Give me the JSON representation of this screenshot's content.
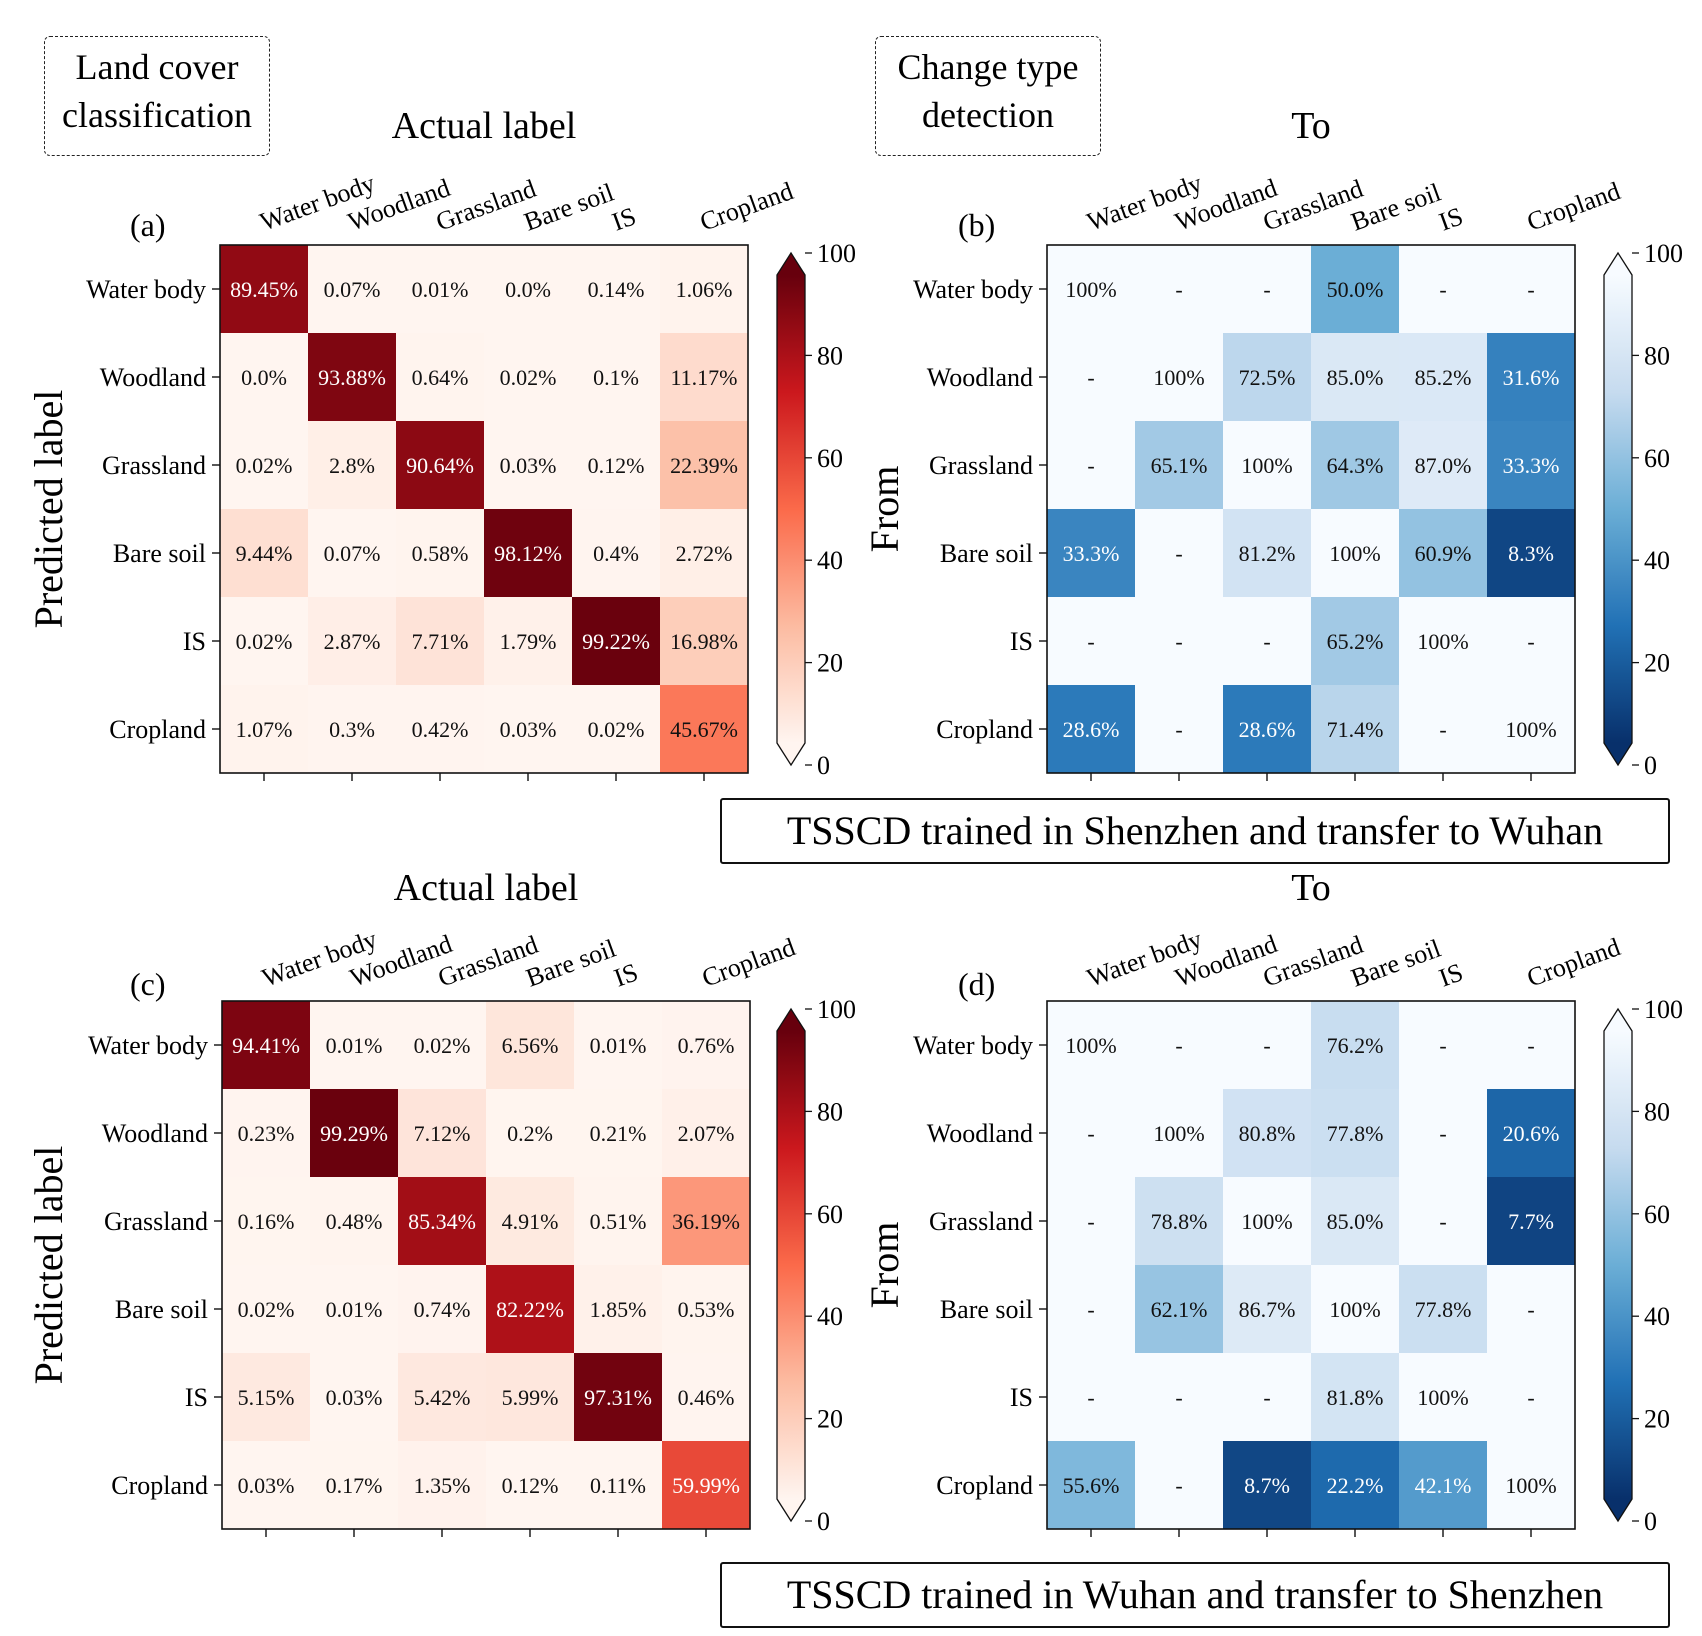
{
  "boxes": {
    "land_cover": "Land cover\nclassification",
    "change_type": "Change type\ndetection"
  },
  "banners": {
    "top": "TSSCD trained in Shenzhen and transfer to Wuhan",
    "bottom": "TSSCD trained in Wuhan and transfer to Shenzhen"
  },
  "chart_data": [
    {
      "type": "heatmap",
      "panel_label": "(a)",
      "title": "Actual label",
      "ylabel": "Predicted label",
      "colormap": "Reds",
      "colors": [
        "#fff5f0",
        "#fcbba1",
        "#fb6a4a",
        "#cb181d",
        "#67000d"
      ],
      "x_categories": [
        "Water body",
        "Woodland",
        "Grassland",
        "Bare soil",
        "IS",
        "Cropland"
      ],
      "y_categories": [
        "Water body",
        "Woodland",
        "Grassland",
        "Bare soil",
        "IS",
        "Cropland"
      ],
      "values": [
        [
          89.45,
          0.07,
          0.01,
          0.0,
          0.14,
          1.06
        ],
        [
          0.0,
          93.88,
          0.64,
          0.02,
          0.1,
          11.17
        ],
        [
          0.02,
          2.8,
          90.64,
          0.03,
          0.12,
          22.39
        ],
        [
          9.44,
          0.07,
          0.58,
          98.12,
          0.4,
          2.72
        ],
        [
          0.02,
          2.87,
          7.71,
          1.79,
          99.22,
          16.98
        ],
        [
          1.07,
          0.3,
          0.42,
          0.03,
          0.02,
          45.67
        ]
      ],
      "labels": [
        [
          "89.45%",
          "0.07%",
          "0.01%",
          "0.0%",
          "0.14%",
          "1.06%"
        ],
        [
          "0.0%",
          "93.88%",
          "0.64%",
          "0.02%",
          "0.1%",
          "11.17%"
        ],
        [
          "0.02%",
          "2.8%",
          "90.64%",
          "0.03%",
          "0.12%",
          "22.39%"
        ],
        [
          "9.44%",
          "0.07%",
          "0.58%",
          "98.12%",
          "0.4%",
          "2.72%"
        ],
        [
          "0.02%",
          "2.87%",
          "7.71%",
          "1.79%",
          "99.22%",
          "16.98%"
        ],
        [
          "1.07%",
          "0.3%",
          "0.42%",
          "0.03%",
          "0.02%",
          "45.67%"
        ]
      ],
      "colorbar_ticks": [
        "0",
        "20",
        "40",
        "60",
        "80",
        "100"
      ],
      "vlim": [
        0,
        100
      ]
    },
    {
      "type": "heatmap",
      "panel_label": "(b)",
      "title": "To",
      "ylabel": "From",
      "colormap": "Blues_r",
      "colors": [
        "#08306b",
        "#2171b5",
        "#6baed6",
        "#c6dbef",
        "#f7fbff"
      ],
      "x_categories": [
        "Water body",
        "Woodland",
        "Grassland",
        "Bare soil",
        "IS",
        "Cropland"
      ],
      "y_categories": [
        "Water body",
        "Woodland",
        "Grassland",
        "Bare soil",
        "IS",
        "Cropland"
      ],
      "values": [
        [
          100,
          null,
          null,
          50.0,
          null,
          null
        ],
        [
          null,
          100,
          72.5,
          85.0,
          85.2,
          31.6
        ],
        [
          null,
          65.1,
          100,
          64.3,
          87.0,
          33.3
        ],
        [
          33.3,
          null,
          81.2,
          100,
          60.9,
          8.3
        ],
        [
          null,
          null,
          null,
          65.2,
          100,
          null
        ],
        [
          28.6,
          null,
          28.6,
          71.4,
          null,
          100
        ]
      ],
      "labels": [
        [
          "100%",
          "-",
          "-",
          "50.0%",
          "-",
          "-"
        ],
        [
          "-",
          "100%",
          "72.5%",
          "85.0%",
          "85.2%",
          "31.6%"
        ],
        [
          "-",
          "65.1%",
          "100%",
          "64.3%",
          "87.0%",
          "33.3%"
        ],
        [
          "33.3%",
          "-",
          "81.2%",
          "100%",
          "60.9%",
          "8.3%"
        ],
        [
          "-",
          "-",
          "-",
          "65.2%",
          "100%",
          "-"
        ],
        [
          "28.6%",
          "-",
          "28.6%",
          "71.4%",
          "-",
          "100%"
        ]
      ],
      "colorbar_ticks": [
        "0",
        "20",
        "40",
        "60",
        "80",
        "100"
      ],
      "vlim": [
        0,
        100
      ]
    },
    {
      "type": "heatmap",
      "panel_label": "(c)",
      "title": "Actual label",
      "ylabel": "Predicted label",
      "colormap": "Reds",
      "colors": [
        "#fff5f0",
        "#fcbba1",
        "#fb6a4a",
        "#cb181d",
        "#67000d"
      ],
      "x_categories": [
        "Water body",
        "Woodland",
        "Grassland",
        "Bare soil",
        "IS",
        "Cropland"
      ],
      "y_categories": [
        "Water body",
        "Woodland",
        "Grassland",
        "Bare soil",
        "IS",
        "Cropland"
      ],
      "values": [
        [
          94.41,
          0.01,
          0.02,
          6.56,
          0.01,
          0.76
        ],
        [
          0.23,
          99.29,
          7.12,
          0.2,
          0.21,
          2.07
        ],
        [
          0.16,
          0.48,
          85.34,
          4.91,
          0.51,
          36.19
        ],
        [
          0.02,
          0.01,
          0.74,
          82.22,
          1.85,
          0.53
        ],
        [
          5.15,
          0.03,
          5.42,
          5.99,
          97.31,
          0.46
        ],
        [
          0.03,
          0.17,
          1.35,
          0.12,
          0.11,
          59.99
        ]
      ],
      "labels": [
        [
          "94.41%",
          "0.01%",
          "0.02%",
          "6.56%",
          "0.01%",
          "0.76%"
        ],
        [
          "0.23%",
          "99.29%",
          "7.12%",
          "0.2%",
          "0.21%",
          "2.07%"
        ],
        [
          "0.16%",
          "0.48%",
          "85.34%",
          "4.91%",
          "0.51%",
          "36.19%"
        ],
        [
          "0.02%",
          "0.01%",
          "0.74%",
          "82.22%",
          "1.85%",
          "0.53%"
        ],
        [
          "5.15%",
          "0.03%",
          "5.42%",
          "5.99%",
          "97.31%",
          "0.46%"
        ],
        [
          "0.03%",
          "0.17%",
          "1.35%",
          "0.12%",
          "0.11%",
          "59.99%"
        ]
      ],
      "colorbar_ticks": [
        "0",
        "20",
        "40",
        "60",
        "80",
        "100"
      ],
      "vlim": [
        0,
        100
      ]
    },
    {
      "type": "heatmap",
      "panel_label": "(d)",
      "title": "To",
      "ylabel": "From",
      "colormap": "Blues_r",
      "colors": [
        "#08306b",
        "#2171b5",
        "#6baed6",
        "#c6dbef",
        "#f7fbff"
      ],
      "x_categories": [
        "Water body",
        "Woodland",
        "Grassland",
        "Bare soil",
        "IS",
        "Cropland"
      ],
      "y_categories": [
        "Water body",
        "Woodland",
        "Grassland",
        "Bare soil",
        "IS",
        "Cropland"
      ],
      "values": [
        [
          100,
          null,
          null,
          76.2,
          null,
          null
        ],
        [
          null,
          100,
          80.8,
          77.8,
          null,
          20.6
        ],
        [
          null,
          78.8,
          100,
          85.0,
          null,
          7.7
        ],
        [
          null,
          62.1,
          86.7,
          100,
          77.8,
          null
        ],
        [
          null,
          null,
          null,
          81.8,
          100,
          null
        ],
        [
          55.6,
          null,
          8.7,
          22.2,
          42.1,
          100
        ]
      ],
      "labels": [
        [
          "100%",
          "-",
          "-",
          "76.2%",
          "-",
          "-"
        ],
        [
          "-",
          "100%",
          "80.8%",
          "77.8%",
          "-",
          "20.6%"
        ],
        [
          "-",
          "78.8%",
          "100%",
          "85.0%",
          "-",
          "7.7%"
        ],
        [
          "-",
          "62.1%",
          "86.7%",
          "100%",
          "77.8%",
          "-"
        ],
        [
          "-",
          "-",
          "-",
          "81.8%",
          "100%",
          "-"
        ],
        [
          "55.6%",
          "-",
          "8.7%",
          "22.2%",
          "42.1%",
          "100%"
        ]
      ],
      "colorbar_ticks": [
        "0",
        "20",
        "40",
        "60",
        "80",
        "100"
      ],
      "vlim": [
        0,
        100
      ]
    }
  ]
}
